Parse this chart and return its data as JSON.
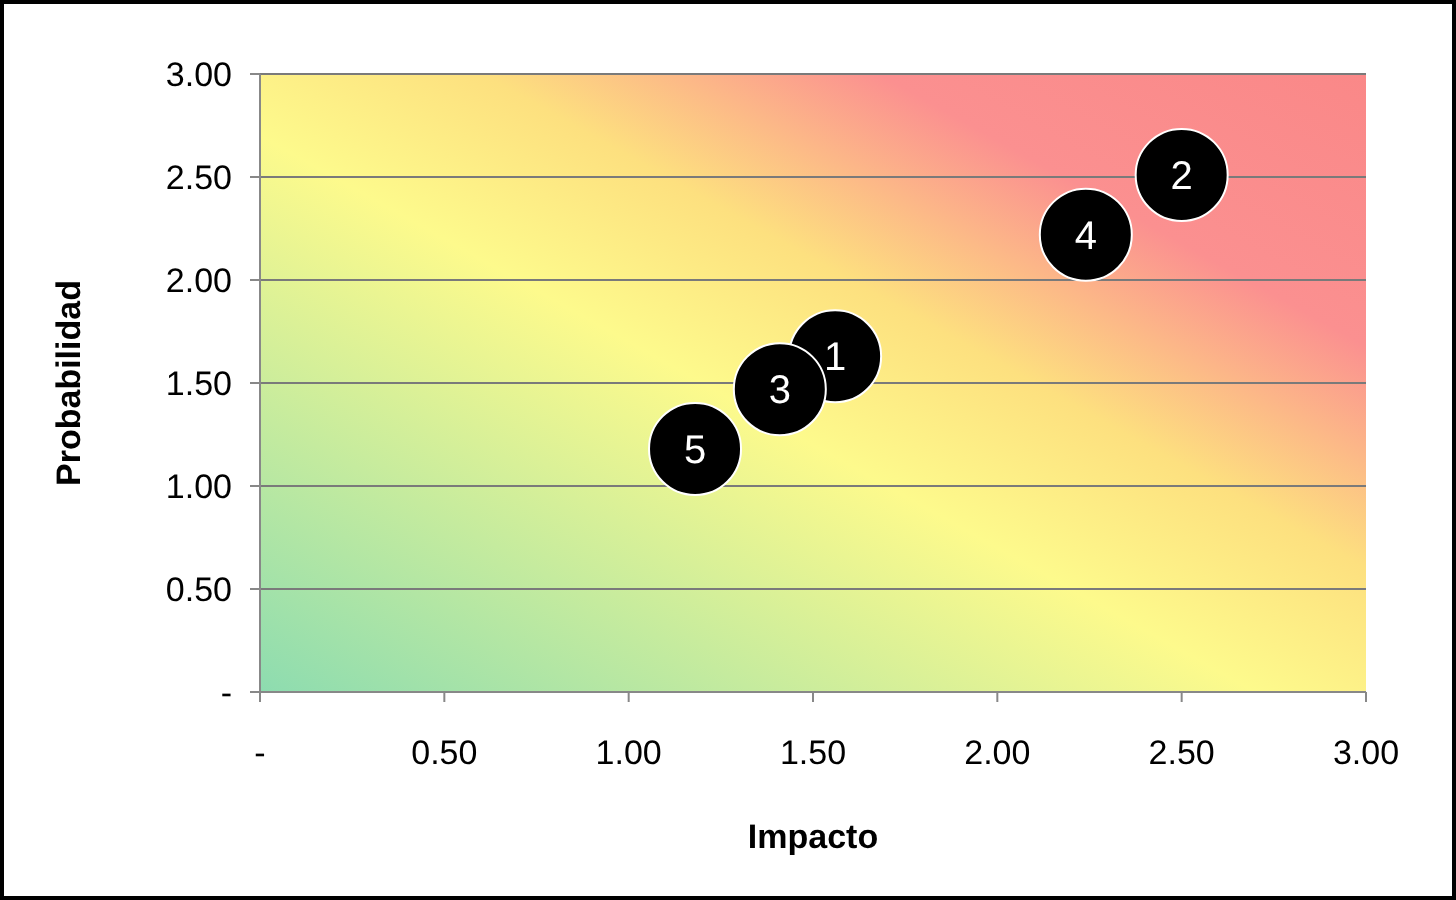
{
  "chart_data": {
    "type": "scatter",
    "xlabel": "Impacto",
    "ylabel": "Probabilidad",
    "x": [
      1.56,
      2.5,
      1.41,
      2.24,
      1.18
    ],
    "series": [
      {
        "color": "#000000",
        "values": [
          1.63,
          2.51,
          1.47,
          2.22,
          1.18
        ]
      }
    ],
    "xlim": [
      0,
      3
    ],
    "ylim": [
      0,
      3
    ],
    "xticks": [
      {
        "value": 0,
        "label": "-"
      },
      {
        "value": 0.5,
        "label": "0.50"
      },
      {
        "value": 1,
        "label": "1.00"
      },
      {
        "value": 1.5,
        "label": "1.50"
      },
      {
        "value": 2,
        "label": "2.00"
      },
      {
        "value": 2.5,
        "label": "2.50"
      },
      {
        "value": 3,
        "label": "3.00"
      }
    ],
    "yticks": [
      {
        "value": 0,
        "label": "-"
      },
      {
        "value": 0.5,
        "label": "0.50"
      },
      {
        "value": 1,
        "label": "1.00"
      },
      {
        "value": 1.5,
        "label": "1.50"
      },
      {
        "value": 2,
        "label": "2.00"
      },
      {
        "value": 2.5,
        "label": "2.50"
      },
      {
        "value": 3,
        "label": "3.00"
      }
    ],
    "grid": "y",
    "marker": "circle",
    "annotations": [
      {
        "text": "1",
        "x": 1.56,
        "y": 1.63
      },
      {
        "text": "2",
        "x": 2.5,
        "y": 2.51
      },
      {
        "text": "3",
        "x": 1.41,
        "y": 1.47
      },
      {
        "text": "4",
        "x": 2.24,
        "y": 2.22
      },
      {
        "text": "5",
        "x": 1.18,
        "y": 1.18
      }
    ]
  }
}
